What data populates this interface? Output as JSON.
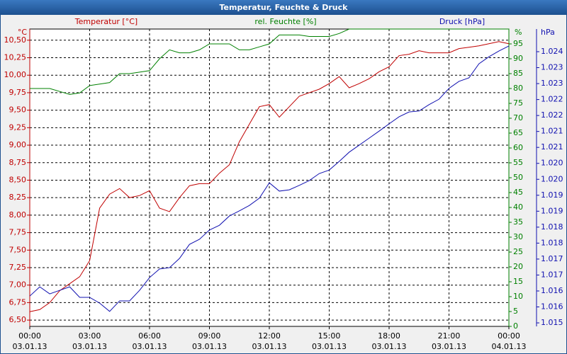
{
  "chart_data": {
    "type": "line",
    "title": "Temperatur, Feuchte & Druck",
    "x": [
      0,
      0.5,
      1,
      1.5,
      2,
      2.5,
      3,
      3.5,
      4,
      4.5,
      5,
      5.5,
      6,
      6.5,
      7,
      7.5,
      8,
      8.5,
      9,
      9.5,
      10,
      10.5,
      11,
      11.5,
      12,
      12.5,
      13,
      13.5,
      14,
      14.5,
      15,
      15.5,
      16,
      16.5,
      17,
      17.5,
      18,
      18.5,
      19,
      19.5,
      20,
      20.5,
      21,
      21.5,
      22,
      22.5,
      23,
      23.5,
      24
    ],
    "xlim": [
      0,
      24
    ],
    "xticks": [
      {
        "value": 0,
        "label": "00:00\n03.01.13"
      },
      {
        "value": 3,
        "label": "03:00\n03.01.13"
      },
      {
        "value": 6,
        "label": "06:00\n03.01.13"
      },
      {
        "value": 9,
        "label": "09:00\n03.01.13"
      },
      {
        "value": 12,
        "label": "12:00\n03.01.13"
      },
      {
        "value": 15,
        "label": "15:00\n03.01.13"
      },
      {
        "value": 18,
        "label": "18:00\n03.01.13"
      },
      {
        "value": 21,
        "label": "21:00\n03.01.13"
      },
      {
        "value": 24,
        "label": "00:00\n04.01.13"
      }
    ],
    "grid": true,
    "yunit": "°C",
    "y2unit": "%",
    "y3unit": "hPa",
    "ylim": [
      6.41,
      10.66
    ],
    "yticks": [
      {
        "value": 6.5,
        "label": "6,50"
      },
      {
        "value": 6.75,
        "label": "6,75"
      },
      {
        "value": 7,
        "label": "7,00"
      },
      {
        "value": 7.25,
        "label": "7,25"
      },
      {
        "value": 7.5,
        "label": "7,50"
      },
      {
        "value": 7.75,
        "label": "7,75"
      },
      {
        "value": 8,
        "label": "8,00"
      },
      {
        "value": 8.25,
        "label": "8,25"
      },
      {
        "value": 8.5,
        "label": "8,50"
      },
      {
        "value": 8.75,
        "label": "8,75"
      },
      {
        "value": 9,
        "label": "9,00"
      },
      {
        "value": 9.25,
        "label": "9,25"
      },
      {
        "value": 9.5,
        "label": "9,50"
      },
      {
        "value": 9.75,
        "label": "9,75"
      },
      {
        "value": 10,
        "label": "10,00"
      },
      {
        "value": 10.25,
        "label": "10,25"
      },
      {
        "value": 10.5,
        "label": "10,50"
      }
    ],
    "y2lim": [
      0,
      100
    ],
    "y2ticks": [
      0,
      5,
      10,
      15,
      20,
      25,
      30,
      35,
      40,
      45,
      50,
      55,
      60,
      65,
      70,
      75,
      80,
      85,
      90,
      95
    ],
    "y3lim": [
      1.01489,
      1.02421
    ],
    "y3ticks": [
      {
        "value": 1.015,
        "label": "1.015"
      },
      {
        "value": 1.0155,
        "label": "1.016"
      },
      {
        "value": 1.016,
        "label": "1.016"
      },
      {
        "value": 1.0165,
        "label": "1.017"
      },
      {
        "value": 1.017,
        "label": "1.017"
      },
      {
        "value": 1.0175,
        "label": "1.018"
      },
      {
        "value": 1.018,
        "label": "1.018"
      },
      {
        "value": 1.0185,
        "label": "1.019"
      },
      {
        "value": 1.019,
        "label": "1.019"
      },
      {
        "value": 1.0195,
        "label": "1.020"
      },
      {
        "value": 1.02,
        "label": "1.020"
      },
      {
        "value": 1.0205,
        "label": "1.021"
      },
      {
        "value": 1.021,
        "label": "1.021"
      },
      {
        "value": 1.0215,
        "label": "1.022"
      },
      {
        "value": 1.022,
        "label": "1.022"
      },
      {
        "value": 1.0225,
        "label": "1.023"
      },
      {
        "value": 1.023,
        "label": "1.023"
      },
      {
        "value": 1.0235,
        "label": "1.024"
      }
    ],
    "series": [
      {
        "name": "Temperatur [°C]",
        "color": "#c00000",
        "axis": "y",
        "values": [
          6.62,
          6.65,
          6.75,
          6.92,
          7.02,
          7.12,
          7.35,
          8.1,
          8.3,
          8.38,
          8.25,
          8.28,
          8.35,
          8.1,
          8.05,
          8.25,
          8.42,
          8.45,
          8.45,
          8.6,
          8.72,
          9.05,
          9.3,
          9.55,
          9.58,
          9.4,
          9.55,
          9.7,
          9.75,
          9.8,
          9.88,
          9.98,
          9.82,
          9.88,
          9.95,
          10.05,
          10.12,
          10.28,
          10.3,
          10.35,
          10.32,
          10.32,
          10.32,
          10.38,
          10.4,
          10.42,
          10.45,
          10.48,
          10.45
        ]
      },
      {
        "name": "rel. Feuchte [%]",
        "color": "#008000",
        "axis": "y2",
        "values": [
          80,
          80,
          80,
          79,
          78,
          78.5,
          81,
          81.5,
          82,
          85,
          85,
          85.5,
          86,
          90,
          93,
          92,
          92,
          93,
          95,
          95,
          95,
          93,
          93,
          94,
          95,
          98,
          98,
          98,
          97.5,
          97.5,
          97.5,
          98.5,
          100,
          100,
          100,
          100,
          100,
          100,
          100,
          100,
          100,
          100,
          100,
          100,
          100,
          100,
          100,
          100,
          100
        ]
      },
      {
        "name": "Druck [hPa]",
        "color": "#1010b0",
        "axis": "y3",
        "values": [
          1.01584,
          1.01613,
          1.01591,
          1.01602,
          1.01613,
          1.0158,
          1.0158,
          1.01562,
          1.01536,
          1.01569,
          1.01569,
          1.01602,
          1.01642,
          1.01669,
          1.01673,
          1.01702,
          1.01746,
          1.01762,
          1.01791,
          1.01806,
          1.01835,
          1.01851,
          1.01868,
          1.01891,
          1.01939,
          1.01913,
          1.01917,
          1.01931,
          1.01946,
          1.01968,
          1.01979,
          1.02006,
          1.02035,
          1.02057,
          1.02079,
          1.02101,
          1.02124,
          1.02146,
          1.02161,
          1.02164,
          1.02184,
          1.02201,
          1.02235,
          1.02257,
          1.02268,
          1.02312,
          1.02334,
          1.02352,
          1.02368
        ]
      }
    ]
  }
}
